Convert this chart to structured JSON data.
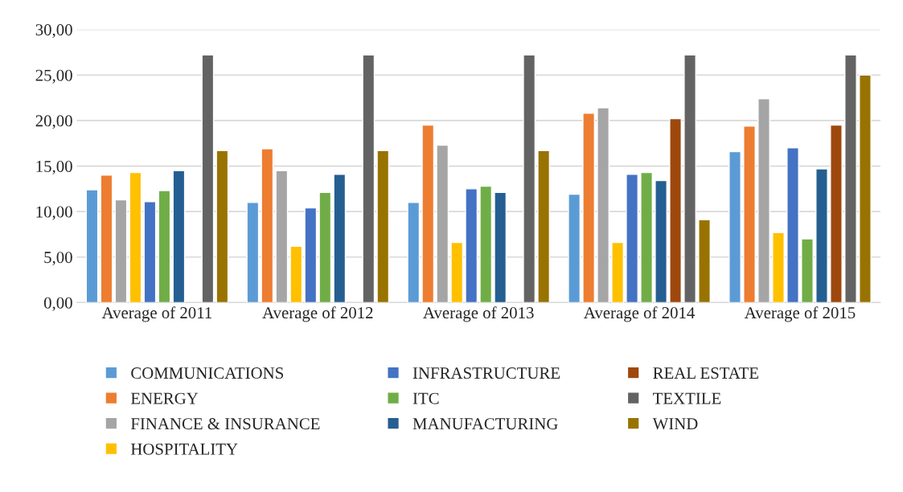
{
  "chart_data": {
    "type": "bar",
    "categories": [
      "Average of 2011",
      "Average of 2012",
      "Average of 2013",
      "Average of 2014",
      "Average of 2015"
    ],
    "series": [
      {
        "name": "COMMUNICATIONS",
        "color": "#5b9bd5",
        "values": [
          12.4,
          11.0,
          11.0,
          11.9,
          16.6
        ]
      },
      {
        "name": "ENERGY",
        "color": "#ed7d31",
        "values": [
          14.0,
          16.9,
          19.5,
          20.8,
          19.4
        ]
      },
      {
        "name": "FINANCE & INSURANCE",
        "color": "#a5a5a5",
        "values": [
          11.3,
          14.5,
          17.3,
          21.4,
          22.4
        ]
      },
      {
        "name": "HOSPITALITY",
        "color": "#ffc000",
        "values": [
          14.3,
          6.2,
          6.6,
          6.6,
          7.7
        ]
      },
      {
        "name": "INFRASTRUCTURE",
        "color": "#4472c4",
        "values": [
          11.1,
          10.4,
          12.5,
          14.1,
          17.0
        ]
      },
      {
        "name": "ITC",
        "color": "#70ad47",
        "values": [
          12.3,
          12.1,
          12.8,
          14.3,
          7.0
        ]
      },
      {
        "name": "MANUFACTURING",
        "color": "#255e91",
        "values": [
          14.5,
          14.1,
          12.1,
          13.4,
          14.7
        ]
      },
      {
        "name": "REAL ESTATE",
        "color": "#9e480e",
        "values": [
          null,
          null,
          null,
          20.2,
          19.5
        ]
      },
      {
        "name": "TEXTILE",
        "color": "#636363",
        "values": [
          27.2,
          27.2,
          27.2,
          27.2,
          27.2
        ]
      },
      {
        "name": "WIND",
        "color": "#997300",
        "values": [
          16.7,
          16.7,
          16.7,
          9.1,
          25.0
        ]
      }
    ],
    "ylim": [
      0,
      30
    ],
    "yticks": [
      {
        "value": 0,
        "label": "0,00"
      },
      {
        "value": 5,
        "label": "5,00"
      },
      {
        "value": 10,
        "label": "10,00"
      },
      {
        "value": 15,
        "label": "15,00"
      },
      {
        "value": 20,
        "label": "20,00"
      },
      {
        "value": 25,
        "label": "25,00"
      },
      {
        "value": 30,
        "label": "30,00"
      }
    ],
    "grid": "y",
    "legend": "bottom"
  }
}
